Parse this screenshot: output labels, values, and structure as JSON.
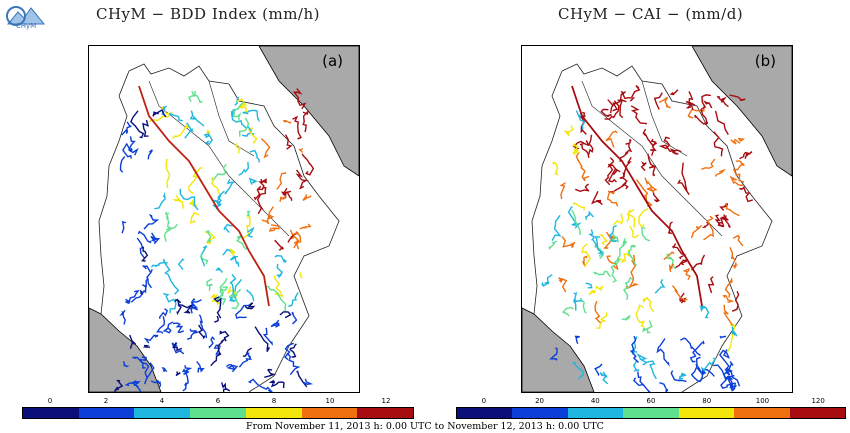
{
  "logo": {
    "text": "CHyM",
    "icon": "chym-logo-icon"
  },
  "panels": [
    {
      "title": "CHyM − BDD Index (mm/h)",
      "tag": "(a)",
      "colorbar": {
        "ticks": [
          "0",
          "2",
          "4",
          "6",
          "8",
          "10",
          "12"
        ],
        "colors": [
          "#0a0f7a",
          "#0b3fd8",
          "#1fb6e0",
          "#5fe08e",
          "#f2e60a",
          "#f07010",
          "#a80c10"
        ]
      }
    },
    {
      "title": "CHyM − CAI − (mm/d)",
      "tag": "(b)",
      "colorbar": {
        "ticks": [
          "0",
          "20",
          "40",
          "60",
          "80",
          "100",
          "120"
        ],
        "colors": [
          "#0a0f7a",
          "#0b3fd8",
          "#1fb6e0",
          "#5fe08e",
          "#f2e60a",
          "#f07010",
          "#a80c10"
        ]
      }
    }
  ],
  "footer": "From November 11, 2013 h: 0.00 UTC to November 12, 2013 h: 0.00 UTC",
  "colors": {
    "sea": "#a9a9a9",
    "land": "#ffffff",
    "border": "#000000"
  }
}
